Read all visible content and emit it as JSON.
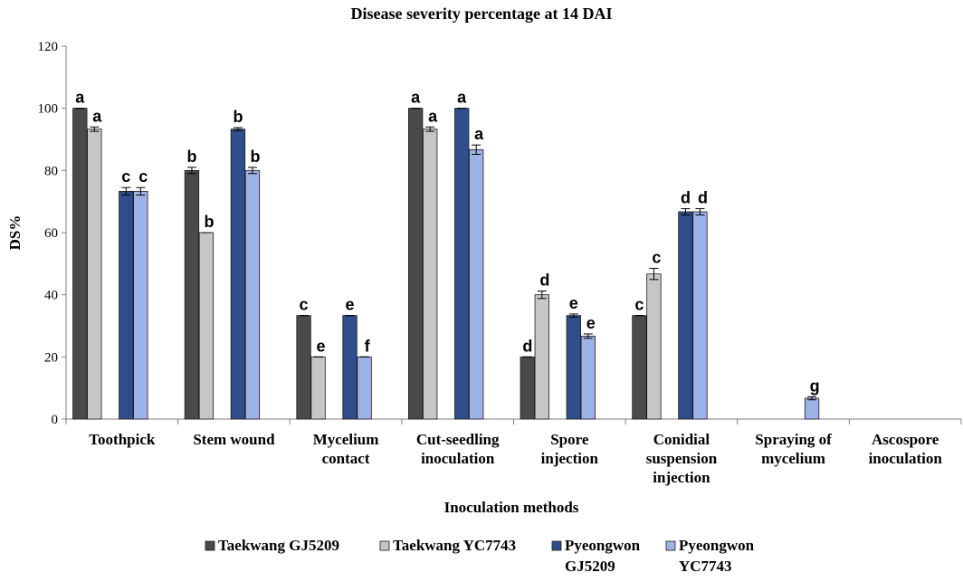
{
  "chart_data": {
    "type": "bar",
    "title": "Disease severity percentage at 14 DAI",
    "xlabel": "Inoculation methods",
    "ylabel": "DS%",
    "ylim": [
      0,
      120
    ],
    "yticks": [
      0,
      20,
      40,
      60,
      80,
      100,
      120
    ],
    "grid": false,
    "legend_position": "bottom",
    "categories": [
      [
        "Toothpick"
      ],
      [
        "Stem wound"
      ],
      [
        "Mycelium",
        "contact"
      ],
      [
        "Cut-seedling",
        "inoculation"
      ],
      [
        "Spore",
        "injection"
      ],
      [
        "Conidial",
        "suspension",
        "injection"
      ],
      [
        "Spraying of",
        "mycelium"
      ],
      [
        "Ascospore",
        "inoculation"
      ]
    ],
    "series": [
      {
        "name": "Taekwang GJ5209",
        "legend_lines": [
          "Taekwang GJ5209"
        ],
        "color": "#4a4a4a",
        "values": [
          100,
          80,
          33.3,
          100,
          20,
          33.3,
          0,
          0
        ],
        "errors": [
          0,
          1,
          0,
          0,
          0,
          0,
          0,
          0
        ],
        "letters": [
          "a",
          "b",
          "c",
          "a",
          "d",
          "c",
          "",
          ""
        ]
      },
      {
        "name": "Taekwang YC7743",
        "legend_lines": [
          "Taekwang YC7743"
        ],
        "color": "#c6c6c6",
        "values": [
          93.3,
          60,
          20,
          93.3,
          40,
          46.7,
          0,
          0
        ],
        "errors": [
          0.7,
          0,
          0,
          0.7,
          1.2,
          1.8,
          0,
          0
        ],
        "letters": [
          "a",
          "b",
          "e",
          "a",
          "d",
          "c",
          "",
          ""
        ]
      },
      {
        "name": "Pyeongwon GJ5209",
        "legend_lines": [
          "Pyeongwon",
          "GJ5209"
        ],
        "color": "#2e4f8c",
        "values": [
          73.3,
          93.3,
          33.3,
          100,
          33.3,
          66.7,
          0,
          0
        ],
        "errors": [
          1.2,
          0.5,
          0,
          0,
          0.5,
          1,
          0,
          0
        ],
        "letters": [
          "c",
          "b",
          "e",
          "a",
          "e",
          "d",
          "",
          ""
        ]
      },
      {
        "name": "Pyeongwon YC7743",
        "legend_lines": [
          "Pyeongwon",
          "YC7743"
        ],
        "color": "#9db3e8",
        "values": [
          73.3,
          80,
          20,
          86.7,
          26.7,
          66.7,
          6.7,
          0
        ],
        "errors": [
          1.2,
          1,
          0,
          1.5,
          0.7,
          1,
          0.5,
          0
        ],
        "letters": [
          "c",
          "b",
          "f",
          "a",
          "e",
          "d",
          "g",
          ""
        ]
      }
    ]
  }
}
